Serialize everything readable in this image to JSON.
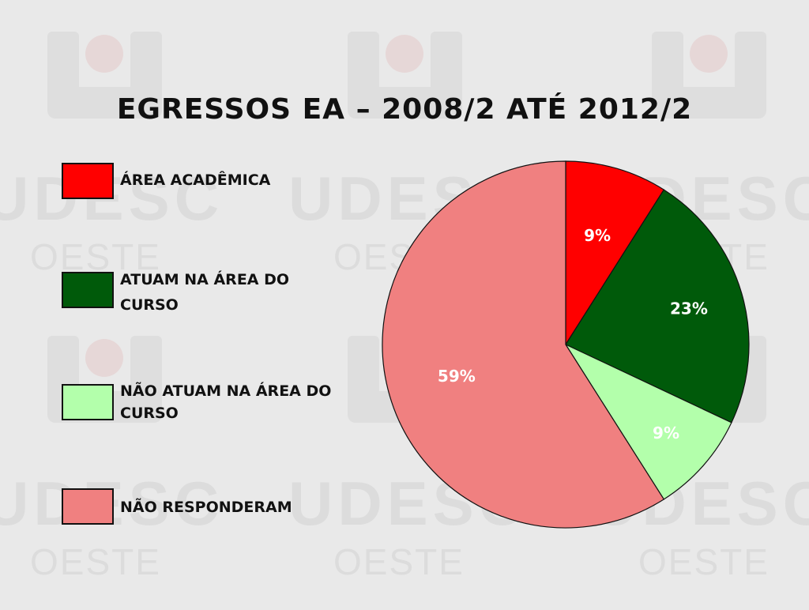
{
  "chart_data": {
    "type": "pie",
    "title": "EGRESSOS EA – 2008/2 ATÉ 2012/2",
    "slices": [
      {
        "name": "ÁREA ACADÊMICA",
        "value": 9,
        "label": "9%",
        "color": "#ff0000"
      },
      {
        "name": "ATUAM NA ÁREA DO CURSO",
        "value": 23,
        "label": "23%",
        "color": "#005a0a"
      },
      {
        "name": "NÃO ATUAM NA ÁREA DO CURSO",
        "value": 9,
        "label": "9%",
        "color": "#b3ffab"
      },
      {
        "name": "NÃO RESPONDERAM",
        "value": 59,
        "label": "59%",
        "color": "#f08080"
      }
    ],
    "legend_position": "left"
  },
  "legend": {
    "item1_line1": "ÁREA ACADÊMICA",
    "item2_line1": "ATUAM NA ÁREA DO",
    "item2_line2": "CURSO",
    "item3_line1": "NÃO ATUAM NA ÁREA DO",
    "item3_line2": "CURSO",
    "item4_line1": "NÃO RESPONDERAM"
  },
  "watermark": {
    "brand": "UDESC",
    "sub": "OESTE",
    "logo_color": "#dcdcdc"
  }
}
